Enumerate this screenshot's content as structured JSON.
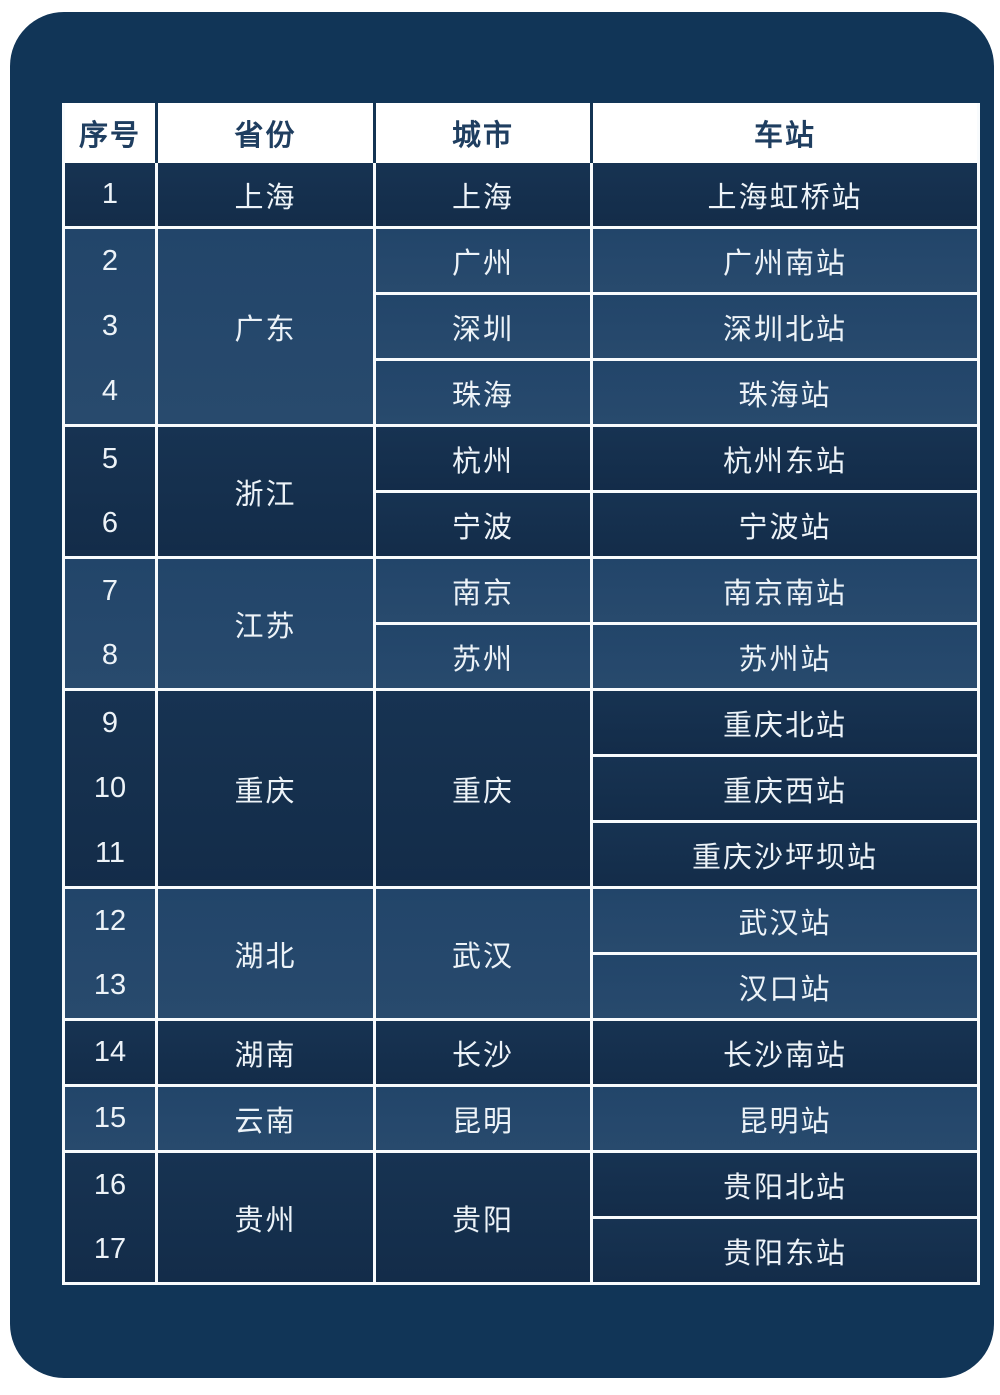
{
  "page": {
    "background_color": "#ffffff",
    "panel_color": "#113557",
    "grid_line_color": "#f8fbfd",
    "dark_cell_color": "#14304f",
    "light_cell_color": "#25486b",
    "header_bg_color": "#ffffff",
    "header_text_color": "#1f3e60",
    "cell_text_color": "#edf3f8"
  },
  "table": {
    "headers": [
      "序号",
      "省份",
      "城市",
      "车站"
    ],
    "groups": [
      {
        "tone": "dark",
        "nos": [
          "1"
        ],
        "province": "上海",
        "cities": [
          "上海"
        ],
        "stations": [
          "上海虹桥站"
        ]
      },
      {
        "tone": "light",
        "nos": [
          "2",
          "3",
          "4"
        ],
        "province": "广东",
        "cities": [
          "广州",
          "深圳",
          "珠海"
        ],
        "stations": [
          "广州南站",
          "深圳北站",
          "珠海站"
        ]
      },
      {
        "tone": "dark",
        "nos": [
          "5",
          "6"
        ],
        "province": "浙江",
        "cities": [
          "杭州",
          "宁波"
        ],
        "stations": [
          "杭州东站",
          "宁波站"
        ]
      },
      {
        "tone": "light",
        "nos": [
          "7",
          "8"
        ],
        "province": "江苏",
        "cities": [
          "南京",
          "苏州"
        ],
        "stations": [
          "南京南站",
          "苏州站"
        ]
      },
      {
        "tone": "dark",
        "nos": [
          "9",
          "10",
          "11"
        ],
        "province": "重庆",
        "cities": [
          "重庆"
        ],
        "stations": [
          "重庆北站",
          "重庆西站",
          "重庆沙坪坝站"
        ]
      },
      {
        "tone": "light",
        "nos": [
          "12",
          "13"
        ],
        "province": "湖北",
        "cities": [
          "武汉"
        ],
        "stations": [
          "武汉站",
          "汉口站"
        ]
      },
      {
        "tone": "dark",
        "nos": [
          "14"
        ],
        "province": "湖南",
        "cities": [
          "长沙"
        ],
        "stations": [
          "长沙南站"
        ]
      },
      {
        "tone": "light",
        "nos": [
          "15"
        ],
        "province": "云南",
        "cities": [
          "昆明"
        ],
        "stations": [
          "昆明站"
        ]
      },
      {
        "tone": "dark",
        "nos": [
          "16",
          "17"
        ],
        "province": "贵州",
        "cities": [
          "贵阳"
        ],
        "stations": [
          "贵阳北站",
          "贵阳东站"
        ]
      }
    ]
  }
}
